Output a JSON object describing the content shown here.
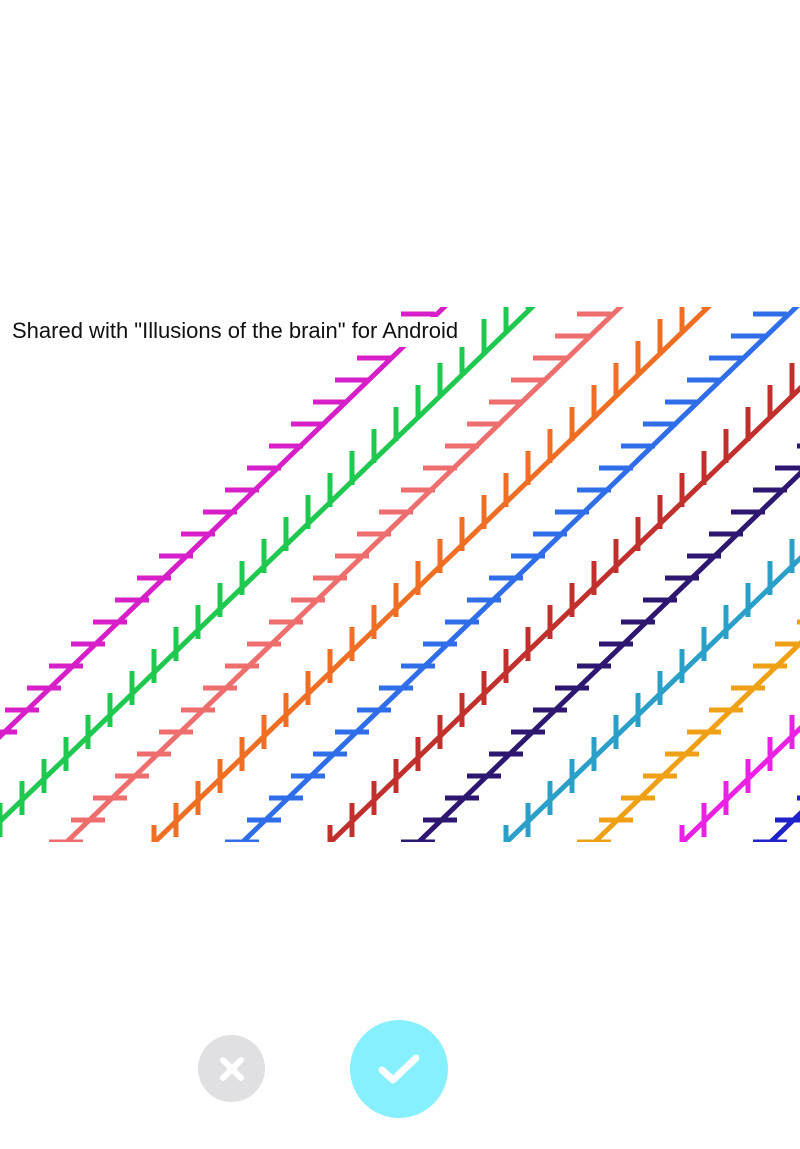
{
  "preview": {
    "caption": "Shared with \"Illusions of the brain\" for Android",
    "stripe_colors": [
      "#d61fc9",
      "#1fc84f",
      "#ee6e6e",
      "#ef6e23",
      "#2f6ee8",
      "#c2302d",
      "#2d1770",
      "#2aa0c8",
      "#f0a015",
      "#ea20e4",
      "#1f22c8",
      "#2a9462",
      "#f2c51a",
      "#3fcfc8"
    ]
  },
  "actions": {
    "discard_icon": "close-icon",
    "confirm_icon": "checkmark-icon",
    "discard_color": "#e0e0e3",
    "confirm_color": "#86f0fe"
  }
}
